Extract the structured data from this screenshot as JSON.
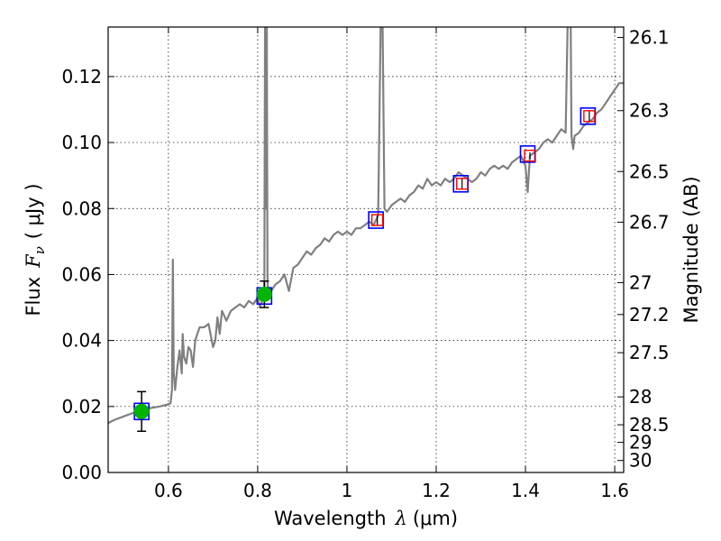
{
  "chart_data": {
    "type": "line",
    "title": "",
    "xlabel": "Wavelength",
    "xlabel_symbol": "λ",
    "xlabel_unit": "(μm)",
    "ylabel": "Flux",
    "ylabel_symbol": "F",
    "ylabel_sub": "ν",
    "ylabel_unit": "( μJy )",
    "y2label": "Magnitude (AB)",
    "xlim": [
      0.465,
      1.62
    ],
    "ylim": [
      0.0,
      0.135
    ],
    "grid": true,
    "x_ticks": [
      0.6,
      0.8,
      1.0,
      1.2,
      1.4,
      1.6
    ],
    "x_tick_labels": [
      "0.6",
      "0.8",
      "1",
      "1.2",
      "1.4",
      "1.6"
    ],
    "y_ticks": [
      0.0,
      0.02,
      0.04,
      0.06,
      0.08,
      0.1,
      0.12
    ],
    "y_tick_labels": [
      "0.00",
      "0.02",
      "0.04",
      "0.06",
      "0.08",
      "0.10",
      "0.12"
    ],
    "mag_ticks": [
      26.1,
      26.3,
      26.5,
      26.7,
      27,
      27.2,
      27.5,
      28,
      28.5,
      29,
      30
    ],
    "mag_tick_labels": [
      "26.1",
      "26.3",
      "26.5",
      "26.7",
      "27",
      "27.2",
      "27.5",
      "28",
      "28.5",
      "29",
      "30"
    ],
    "colors": {
      "spectrum": "#808080",
      "model_box": "#0000ff",
      "observed_point": "#00b400",
      "predicted_point": "#ff0000",
      "errorbar": "#000000"
    },
    "series": [
      {
        "kind": "spectrum",
        "x": [
          0.465,
          0.48,
          0.5,
          0.52,
          0.54,
          0.56,
          0.58,
          0.595,
          0.605,
          0.608,
          0.61,
          0.612,
          0.615,
          0.62,
          0.625,
          0.63,
          0.632,
          0.635,
          0.64,
          0.645,
          0.65,
          0.655,
          0.66,
          0.665,
          0.67,
          0.68,
          0.69,
          0.7,
          0.705,
          0.71,
          0.715,
          0.72,
          0.73,
          0.74,
          0.75,
          0.76,
          0.77,
          0.78,
          0.79,
          0.8,
          0.805,
          0.81,
          0.815,
          0.817,
          0.818,
          0.82,
          0.822,
          0.823,
          0.825,
          0.83,
          0.84,
          0.85,
          0.86,
          0.87,
          0.88,
          0.89,
          0.9,
          0.91,
          0.92,
          0.93,
          0.94,
          0.95,
          0.96,
          0.97,
          0.98,
          0.99,
          1.0,
          1.01,
          1.02,
          1.03,
          1.04,
          1.05,
          1.06,
          1.07,
          1.075,
          1.078,
          1.081,
          1.084,
          1.09,
          1.1,
          1.11,
          1.12,
          1.13,
          1.14,
          1.15,
          1.16,
          1.17,
          1.18,
          1.19,
          1.2,
          1.21,
          1.22,
          1.23,
          1.24,
          1.25,
          1.26,
          1.27,
          1.28,
          1.29,
          1.3,
          1.31,
          1.32,
          1.33,
          1.34,
          1.35,
          1.36,
          1.37,
          1.38,
          1.39,
          1.4,
          1.405,
          1.41,
          1.42,
          1.43,
          1.44,
          1.45,
          1.46,
          1.47,
          1.48,
          1.49,
          1.495,
          1.5,
          1.503,
          1.507,
          1.51,
          1.52,
          1.53,
          1.54,
          1.55,
          1.56,
          1.57,
          1.58,
          1.59,
          1.6,
          1.61,
          1.62
        ],
        "y": [
          0.015,
          0.016,
          0.017,
          0.018,
          0.019,
          0.0195,
          0.02,
          0.0205,
          0.021,
          0.025,
          0.0645,
          0.03,
          0.025,
          0.032,
          0.037,
          0.03,
          0.042,
          0.035,
          0.033,
          0.038,
          0.037,
          0.032,
          0.04,
          0.042,
          0.044,
          0.044,
          0.045,
          0.038,
          0.04,
          0.047,
          0.042,
          0.049,
          0.046,
          0.049,
          0.05,
          0.051,
          0.05,
          0.052,
          0.051,
          0.053,
          0.05,
          0.052,
          0.053,
          0.16,
          0.08,
          0.16,
          0.06,
          0.053,
          0.056,
          0.055,
          0.057,
          0.058,
          0.06,
          0.055,
          0.062,
          0.063,
          0.065,
          0.067,
          0.066,
          0.068,
          0.069,
          0.071,
          0.07,
          0.072,
          0.073,
          0.072,
          0.073,
          0.072,
          0.074,
          0.074,
          0.075,
          0.076,
          0.075,
          0.078,
          0.13,
          0.16,
          0.12,
          0.08,
          0.079,
          0.081,
          0.082,
          0.083,
          0.082,
          0.084,
          0.085,
          0.087,
          0.086,
          0.089,
          0.087,
          0.088,
          0.087,
          0.089,
          0.088,
          0.089,
          0.091,
          0.09,
          0.089,
          0.088,
          0.089,
          0.091,
          0.09,
          0.092,
          0.093,
          0.092,
          0.093,
          0.092,
          0.094,
          0.095,
          0.096,
          0.093,
          0.085,
          0.096,
          0.097,
          0.098,
          0.1,
          0.101,
          0.1,
          0.102,
          0.104,
          0.103,
          0.14,
          0.16,
          0.102,
          0.098,
          0.102,
          0.103,
          0.105,
          0.106,
          0.107,
          0.109,
          0.11,
          0.112,
          0.114,
          0.116,
          0.118,
          0.118
        ]
      },
      {
        "kind": "model_fluxes",
        "x": [
          0.54,
          0.815,
          1.065,
          1.255,
          1.405,
          1.54
        ],
        "y": [
          0.0185,
          0.0535,
          0.0765,
          0.0875,
          0.0965,
          0.108
        ]
      },
      {
        "kind": "observed",
        "x": [
          0.54,
          0.815
        ],
        "y": [
          0.0185,
          0.054
        ],
        "yerr_low": [
          0.006,
          0.004
        ],
        "yerr_high": [
          0.006,
          0.004
        ]
      },
      {
        "kind": "predicted",
        "x": [
          1.068,
          1.258,
          1.41,
          1.543
        ],
        "y": [
          0.0765,
          0.0875,
          0.096,
          0.108
        ],
        "yerr_low": [
          0.0015,
          0.0015,
          0.001,
          0.0015
        ],
        "yerr_high": [
          0.0015,
          0.0015,
          0.001,
          0.0015
        ]
      }
    ]
  }
}
